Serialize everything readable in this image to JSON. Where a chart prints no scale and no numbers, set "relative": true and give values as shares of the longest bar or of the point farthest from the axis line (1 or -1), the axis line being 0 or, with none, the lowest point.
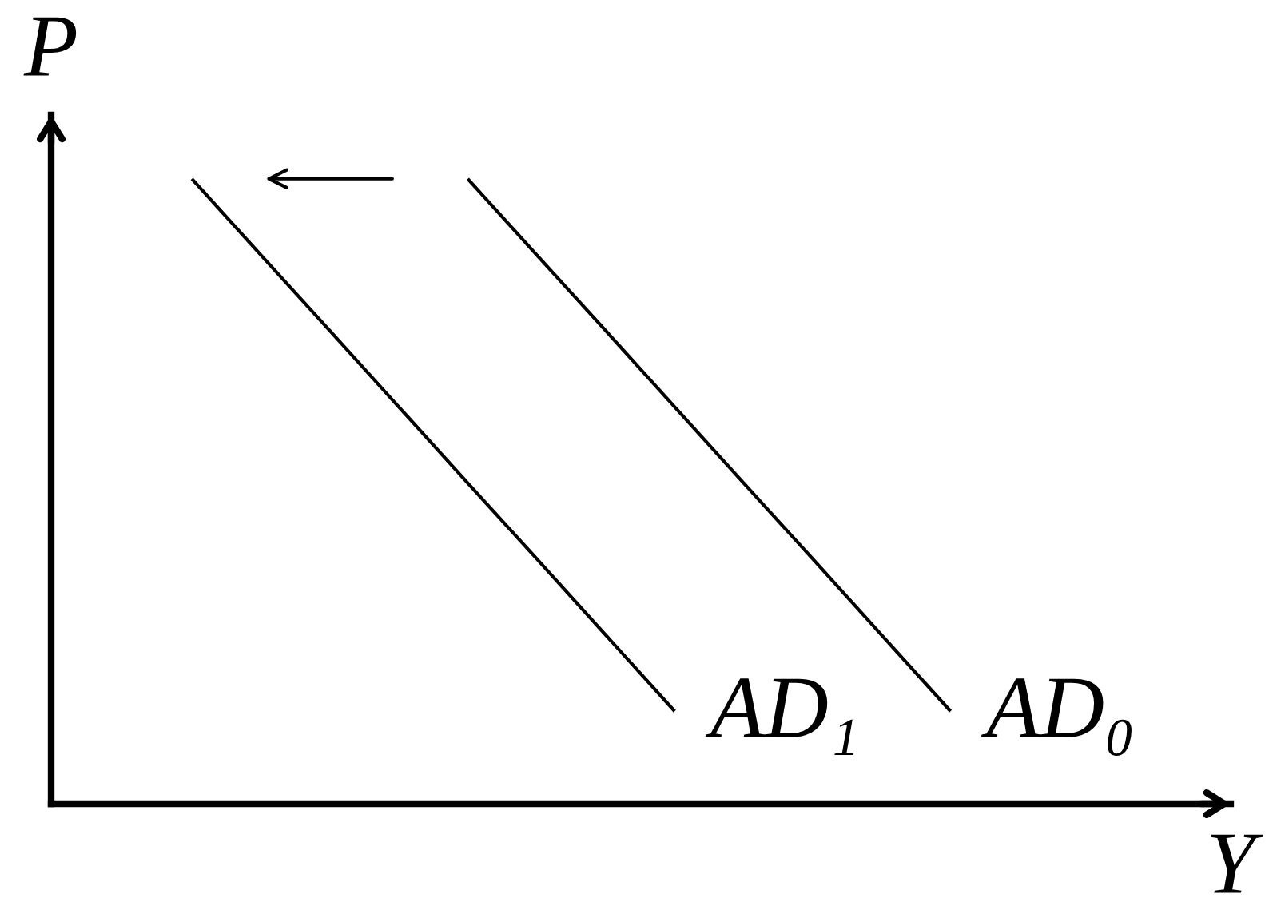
{
  "chart_data": {
    "type": "line",
    "relative": true,
    "xlabel": "Y",
    "ylabel": "P",
    "categories": [
      null,
      null,
      null,
      null,
      null,
      null,
      null,
      null,
      null,
      null,
      null,
      null
    ],
    "series": [
      {
        "name": "AD₁",
        "color": "#000000",
        "values": [
          1,
          0.878,
          0.757,
          0.635,
          0.513,
          0.392,
          0.27,
          0.148,
          null,
          null,
          null,
          null
        ]
      },
      {
        "name": "AD₀",
        "color": "#000000",
        "values": [
          null,
          null,
          null,
          null,
          1,
          0.878,
          0.757,
          0.635,
          0.513,
          0.392,
          0.27,
          0.148
        ]
      }
    ]
  }
}
